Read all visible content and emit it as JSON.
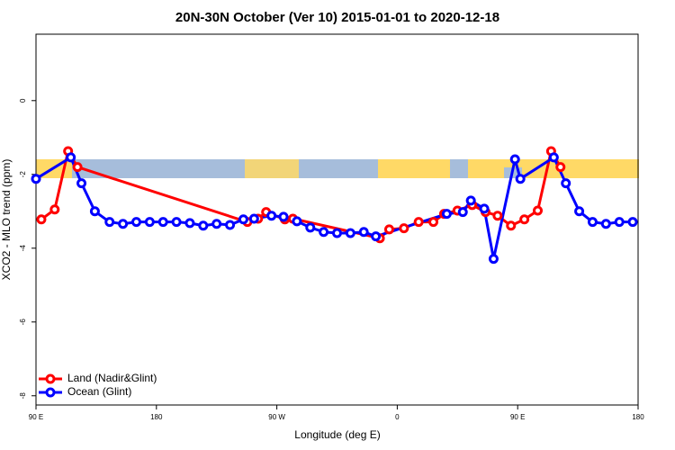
{
  "chart_data": {
    "type": "line",
    "title": "20N-30N October (Ver 10)   2015-01-01 to 2020-12-18",
    "x_label": "Longitude (deg E)",
    "y_label": "XCO2 - MLO trend (ppm)",
    "xlim": [
      90,
      540
    ],
    "ylim": [
      -8.25,
      1.8
    ],
    "xticks": [
      {
        "value": 90,
        "label": "90 E"
      },
      180,
      {
        "value": 270,
        "label": "90 W"
      },
      {
        "value": 360,
        "label": "0"
      },
      {
        "value": 450,
        "label": "90 E"
      },
      {
        "value": 540,
        "label": "180"
      }
    ],
    "yticks": [
      0,
      -2,
      -4,
      -6,
      -8
    ],
    "legend": "bottom-left",
    "series": [
      {
        "name": "Land (Nadir&Glint)",
        "color": "#ff0000",
        "x": [
          94,
          104,
          114,
          121,
          248,
          256,
          262,
          276,
          282,
          347,
          354,
          365,
          376,
          387,
          395,
          405,
          416,
          426,
          435,
          445,
          455,
          465,
          475,
          482
        ],
        "values": [
          -3.22,
          -2.95,
          -1.37,
          -1.8,
          -3.29,
          -3.2,
          -3.02,
          -3.22,
          -3.2,
          -3.73,
          -3.49,
          -3.46,
          -3.29,
          -3.29,
          -3.07,
          -2.98,
          -2.83,
          -3.02,
          -3.12,
          -3.39,
          -3.22,
          -2.98,
          -1.37,
          -1.8
        ]
      },
      {
        "name": "Ocean (Glint)",
        "color": "#0000ff",
        "x": [
          90,
          116,
          124,
          134,
          145,
          155,
          165,
          175,
          185,
          195,
          205,
          215,
          225,
          235,
          245,
          253,
          266,
          275,
          285,
          295,
          305,
          315,
          325,
          335,
          344,
          397,
          409,
          415,
          425,
          432,
          448,
          452,
          477,
          486,
          496,
          506,
          516,
          526,
          536
        ],
        "values": [
          -2.12,
          -1.54,
          -2.24,
          -3.0,
          -3.29,
          -3.34,
          -3.29,
          -3.29,
          -3.29,
          -3.29,
          -3.32,
          -3.39,
          -3.34,
          -3.37,
          -3.22,
          -3.2,
          -3.12,
          -3.15,
          -3.27,
          -3.44,
          -3.56,
          -3.59,
          -3.59,
          -3.56,
          -3.68,
          -3.07,
          -3.02,
          -2.71,
          -2.93,
          -4.29,
          -1.59,
          -2.12,
          -1.54,
          -2.24,
          -3.0,
          -3.29,
          -3.34,
          -3.29,
          -3.29
        ]
      }
    ]
  }
}
